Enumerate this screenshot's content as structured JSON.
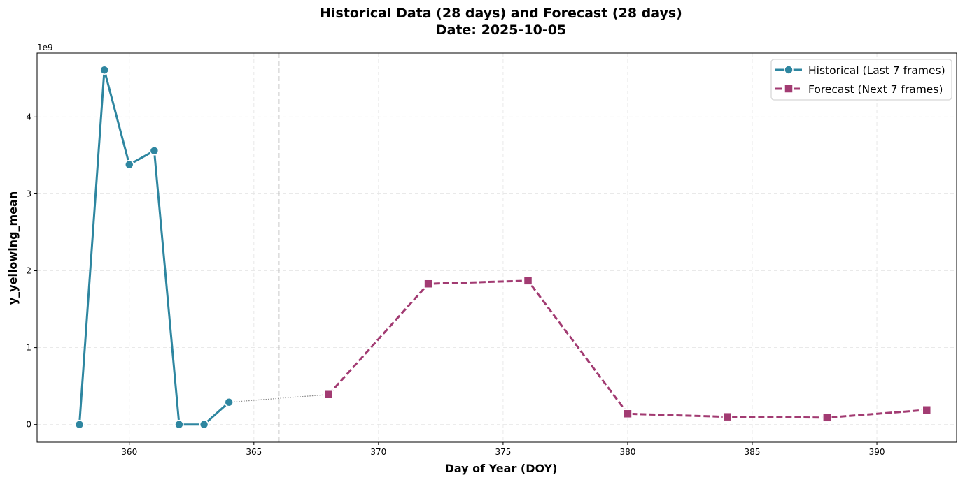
{
  "chart_data": {
    "type": "line",
    "title": "Historical Data (28 days) and Forecast (28 days)",
    "subtitle": "Date: 2025-10-05",
    "xlabel": "Day of Year (DOY)",
    "ylabel": "y_yellowing_mean",
    "y_offset_label": "1e9",
    "xlim": [
      356.3,
      393.2
    ],
    "ylim": [
      -0.23,
      4.83
    ],
    "y_scale": 1000000000,
    "x_ticks": [
      360,
      365,
      370,
      375,
      380,
      385,
      390
    ],
    "y_ticks": [
      0,
      1,
      2,
      3,
      4
    ],
    "grid": true,
    "legend_position": "top-right",
    "vertical_line_x": 366,
    "series": [
      {
        "name": "Historical (Last 7 frames)",
        "color": "#2E86A0",
        "marker": "circle",
        "line_style": "solid",
        "x": [
          358,
          359,
          360,
          361,
          362,
          363,
          364
        ],
        "y": [
          0.0,
          4.61,
          3.38,
          3.56,
          0.0,
          0.0,
          0.29
        ]
      },
      {
        "name": "Forecast (Next 7 frames)",
        "color": "#A23B72",
        "marker": "square",
        "line_style": "dashed",
        "x": [
          368,
          372,
          376,
          380,
          384,
          388,
          392
        ],
        "y": [
          0.39,
          1.83,
          1.87,
          0.14,
          0.1,
          0.09,
          0.19
        ]
      }
    ],
    "connector": {
      "from": [
        364,
        0.29
      ],
      "to": [
        368,
        0.39
      ],
      "color": "#888888",
      "line_style": "dotted"
    }
  }
}
